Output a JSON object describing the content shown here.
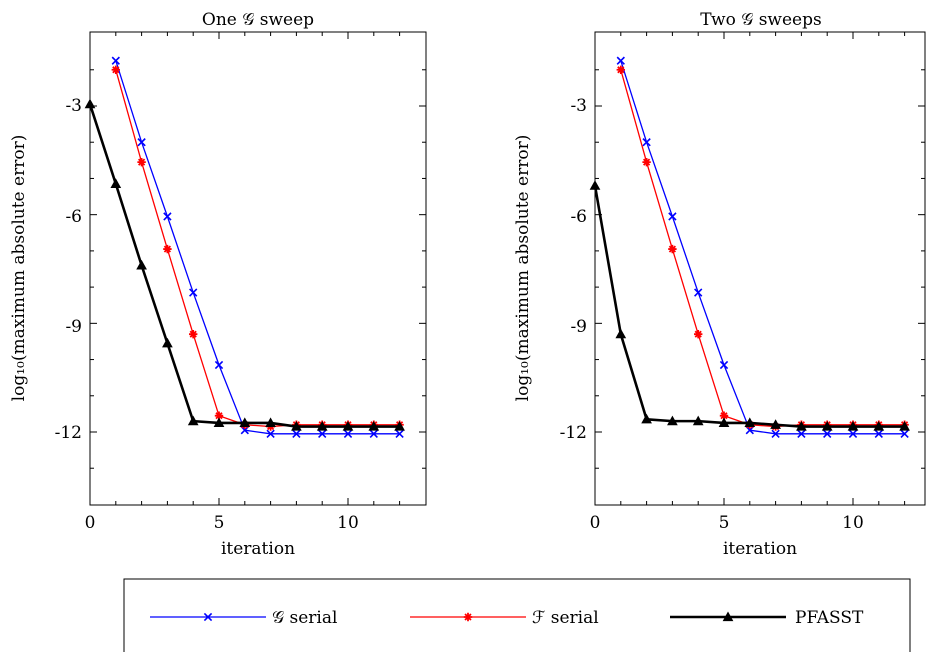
{
  "chart_data": [
    {
      "type": "line",
      "title": "One 𝒢 sweep",
      "xlabel": "iteration",
      "ylabel": "log₁₀(maximum absolute error)",
      "xlim": [
        0,
        12.5
      ],
      "ylim": [
        -14,
        -1.5
      ],
      "xticks": [
        0,
        5,
        10
      ],
      "yticks": [
        -3,
        -6,
        -9,
        -12
      ],
      "series": [
        {
          "name": "𝒢 serial",
          "color": "#0000ff",
          "marker": "x",
          "x": [
            1,
            2,
            3,
            4,
            5,
            6,
            7,
            8,
            9,
            10,
            11,
            12
          ],
          "y": [
            -1.75,
            -4.0,
            -6.05,
            -8.15,
            -10.15,
            -11.95,
            -12.05,
            -12.05,
            -12.05,
            -12.05,
            -12.05,
            -12.05
          ]
        },
        {
          "name": "ℱ serial",
          "color": "#ff0000",
          "marker": "star",
          "x": [
            1,
            2,
            3,
            4,
            5,
            6,
            7,
            8,
            9,
            10,
            11,
            12
          ],
          "y": [
            -2.0,
            -4.55,
            -6.95,
            -9.3,
            -11.55,
            -11.8,
            -11.85,
            -11.8,
            -11.8,
            -11.8,
            -11.8,
            -11.8
          ]
        },
        {
          "name": "PFASST",
          "color": "#000000",
          "marker": "triangle",
          "x": [
            0,
            1,
            2,
            3,
            4,
            5,
            6,
            7,
            8,
            9,
            10,
            11,
            12
          ],
          "y": [
            -2.95,
            -5.15,
            -7.4,
            -9.55,
            -11.7,
            -11.75,
            -11.75,
            -11.75,
            -11.85,
            -11.85,
            -11.85,
            -11.85,
            -11.85
          ]
        }
      ]
    },
    {
      "type": "line",
      "title": "Two 𝒢 sweeps",
      "xlabel": "iteration",
      "ylabel": "log₁₀(maximum absolute error)",
      "xlim": [
        0,
        12.5
      ],
      "ylim": [
        -14,
        -1.5
      ],
      "xticks": [
        0,
        5,
        10
      ],
      "yticks": [
        -3,
        -6,
        -9,
        -12
      ],
      "series": [
        {
          "name": "𝒢 serial",
          "color": "#0000ff",
          "marker": "x",
          "x": [
            1,
            2,
            3,
            4,
            5,
            6,
            7,
            8,
            9,
            10,
            11,
            12
          ],
          "y": [
            -1.75,
            -4.0,
            -6.05,
            -8.15,
            -10.15,
            -11.95,
            -12.05,
            -12.05,
            -12.05,
            -12.05,
            -12.05,
            -12.05
          ]
        },
        {
          "name": "ℱ serial",
          "color": "#ff0000",
          "marker": "star",
          "x": [
            1,
            2,
            3,
            4,
            5,
            6,
            7,
            8,
            9,
            10,
            11,
            12
          ],
          "y": [
            -2.0,
            -4.55,
            -6.95,
            -9.3,
            -11.55,
            -11.8,
            -11.85,
            -11.8,
            -11.8,
            -11.8,
            -11.8,
            -11.8
          ]
        },
        {
          "name": "PFASST",
          "color": "#000000",
          "marker": "triangle",
          "x": [
            0,
            1,
            2,
            3,
            4,
            5,
            6,
            7,
            8,
            9,
            10,
            11,
            12
          ],
          "y": [
            -5.2,
            -9.3,
            -11.65,
            -11.7,
            -11.7,
            -11.75,
            -11.75,
            -11.8,
            -11.85,
            -11.85,
            -11.85,
            -11.85,
            -11.85
          ]
        }
      ]
    }
  ],
  "legend": {
    "placement": "bottom",
    "entries": [
      {
        "label": "𝒢 serial",
        "color": "#0000ff",
        "marker": "x"
      },
      {
        "label": "ℱ serial",
        "color": "#ff0000",
        "marker": "star"
      },
      {
        "label": "PFASST",
        "color": "#000000",
        "marker": "triangle"
      }
    ]
  }
}
